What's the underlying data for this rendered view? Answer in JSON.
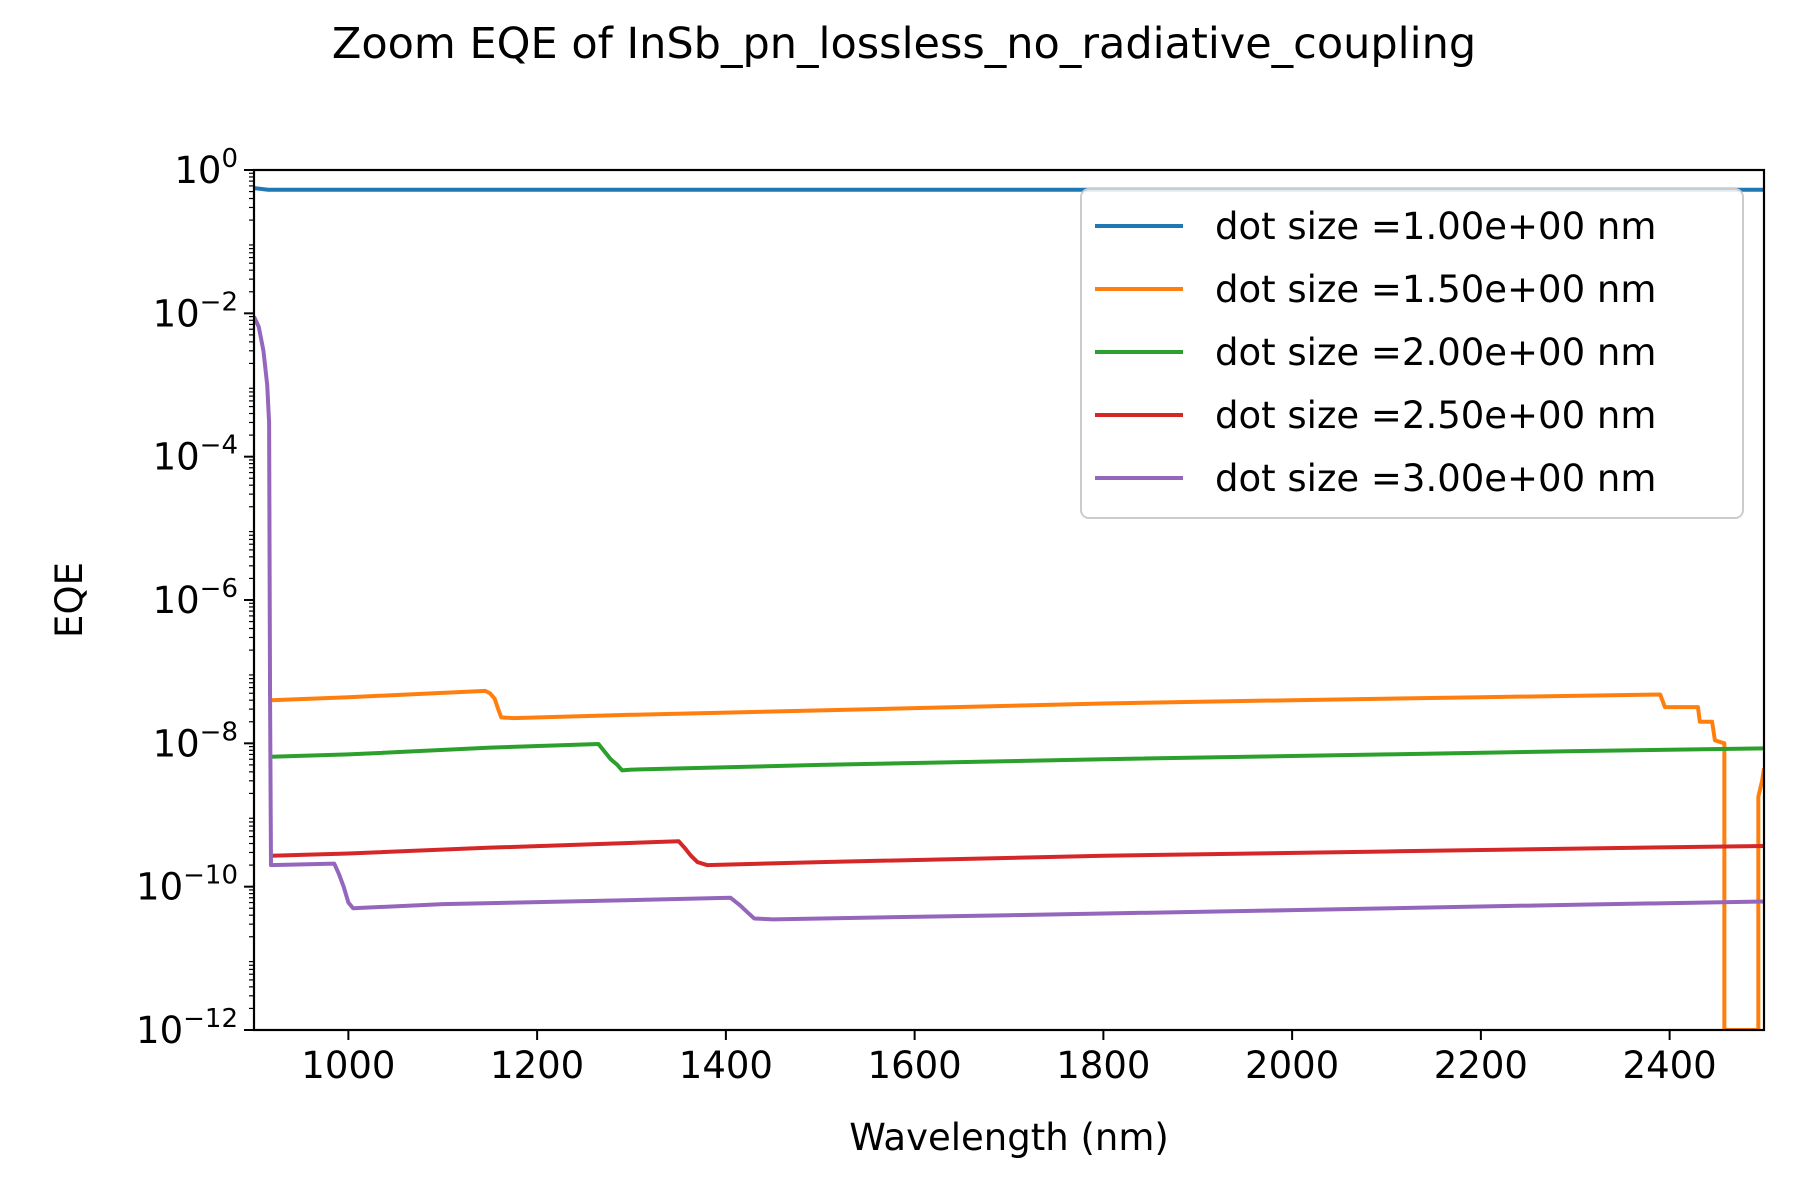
{
  "chart_data": {
    "type": "line",
    "title": "Zoom EQE of InSb_pn_lossless_no_radiative_coupling",
    "xlabel": "Wavelength (nm)",
    "ylabel": "EQE",
    "xscale": "linear",
    "yscale": "log",
    "xlim": [
      900,
      2500
    ],
    "ylim": [
      1e-12,
      1
    ],
    "xticks": [
      1000,
      1200,
      1400,
      1600,
      1800,
      2000,
      2200,
      2400
    ],
    "xtick_labels": [
      "1000",
      "1200",
      "1400",
      "1600",
      "1800",
      "2000",
      "2200",
      "2400"
    ],
    "yticks": [
      {
        "value": 1e-12,
        "base": "10",
        "exp": "−12"
      },
      {
        "value": 1e-10,
        "base": "10",
        "exp": "−10"
      },
      {
        "value": 1e-08,
        "base": "10",
        "exp": "−8"
      },
      {
        "value": 1e-06,
        "base": "10",
        "exp": "−6"
      },
      {
        "value": 0.0001,
        "base": "10",
        "exp": "−4"
      },
      {
        "value": 0.01,
        "base": "10",
        "exp": "−2"
      },
      {
        "value": 1,
        "base": "10",
        "exp": "0"
      }
    ],
    "grid": false,
    "legend_position": "top-right",
    "series": [
      {
        "name": "dot size =1.00e+00 nm",
        "color": "#1f77b4",
        "points": [
          [
            900,
            0.56
          ],
          [
            915,
            0.53
          ],
          [
            1000,
            0.53
          ],
          [
            1500,
            0.53
          ],
          [
            2000,
            0.53
          ],
          [
            2500,
            0.53
          ]
        ]
      },
      {
        "name": "dot size =1.50e+00 nm",
        "color": "#ff7f0e",
        "points": [
          [
            918,
            4e-08
          ],
          [
            1000,
            4.4e-08
          ],
          [
            1145,
            5.4e-08
          ],
          [
            1150,
            5e-08
          ],
          [
            1155,
            4.2e-08
          ],
          [
            1158,
            3.2e-08
          ],
          [
            1162,
            2.3e-08
          ],
          [
            1175,
            2.25e-08
          ],
          [
            1300,
            2.5e-08
          ],
          [
            1600,
            3.1e-08
          ],
          [
            1800,
            3.6e-08
          ],
          [
            2000,
            4e-08
          ],
          [
            2200,
            4.4e-08
          ],
          [
            2390,
            4.8e-08
          ],
          [
            2395,
            3.2e-08
          ],
          [
            2430,
            3.2e-08
          ],
          [
            2432,
            2e-08
          ],
          [
            2445,
            2e-08
          ],
          [
            2448,
            1.1e-08
          ],
          [
            2458,
            1e-08
          ],
          [
            2458,
            1e-12
          ],
          [
            2494,
            1e-12
          ],
          [
            2494,
            1.8e-09
          ],
          [
            2498,
            3e-09
          ],
          [
            2500,
            4.5e-09
          ]
        ]
      },
      {
        "name": "dot size =2.00e+00 nm",
        "color": "#2ca02c",
        "points": [
          [
            918,
            6.5e-09
          ],
          [
            1000,
            7e-09
          ],
          [
            1150,
            8.7e-09
          ],
          [
            1265,
            9.8e-09
          ],
          [
            1272,
            7.5e-09
          ],
          [
            1278,
            6e-09
          ],
          [
            1285,
            5e-09
          ],
          [
            1290,
            4.2e-09
          ],
          [
            1300,
            4.3e-09
          ],
          [
            1500,
            5e-09
          ],
          [
            1800,
            6e-09
          ],
          [
            2100,
            7e-09
          ],
          [
            2300,
            7.8e-09
          ],
          [
            2500,
            8.5e-09
          ]
        ]
      },
      {
        "name": "dot size =2.50e+00 nm",
        "color": "#d62728",
        "points": [
          [
            918,
            2.7e-10
          ],
          [
            1000,
            2.9e-10
          ],
          [
            1150,
            3.5e-10
          ],
          [
            1350,
            4.3e-10
          ],
          [
            1357,
            3.4e-10
          ],
          [
            1363,
            2.7e-10
          ],
          [
            1370,
            2.2e-10
          ],
          [
            1380,
            2e-10
          ],
          [
            1500,
            2.2e-10
          ],
          [
            1800,
            2.7e-10
          ],
          [
            2100,
            3.1e-10
          ],
          [
            2300,
            3.4e-10
          ],
          [
            2500,
            3.7e-10
          ]
        ]
      },
      {
        "name": "dot size =3.00e+00 nm",
        "color": "#9467bd",
        "points": [
          [
            900,
            0.009
          ],
          [
            905,
            0.0065
          ],
          [
            910,
            0.003
          ],
          [
            914,
            0.001
          ],
          [
            916,
            0.0003
          ],
          [
            917,
            5e-08
          ],
          [
            918,
            2e-10
          ],
          [
            985,
            2.1e-10
          ],
          [
            990,
            1.5e-10
          ],
          [
            995,
            1e-10
          ],
          [
            1000,
            6e-11
          ],
          [
            1005,
            5e-11
          ],
          [
            1100,
            5.7e-11
          ],
          [
            1300,
            6.5e-11
          ],
          [
            1405,
            7e-11
          ],
          [
            1415,
            5.5e-11
          ],
          [
            1422,
            4.5e-11
          ],
          [
            1430,
            3.6e-11
          ],
          [
            1450,
            3.5e-11
          ],
          [
            1700,
            4e-11
          ],
          [
            2000,
            4.7e-11
          ],
          [
            2300,
            5.6e-11
          ],
          [
            2500,
            6.2e-11
          ]
        ]
      }
    ]
  }
}
